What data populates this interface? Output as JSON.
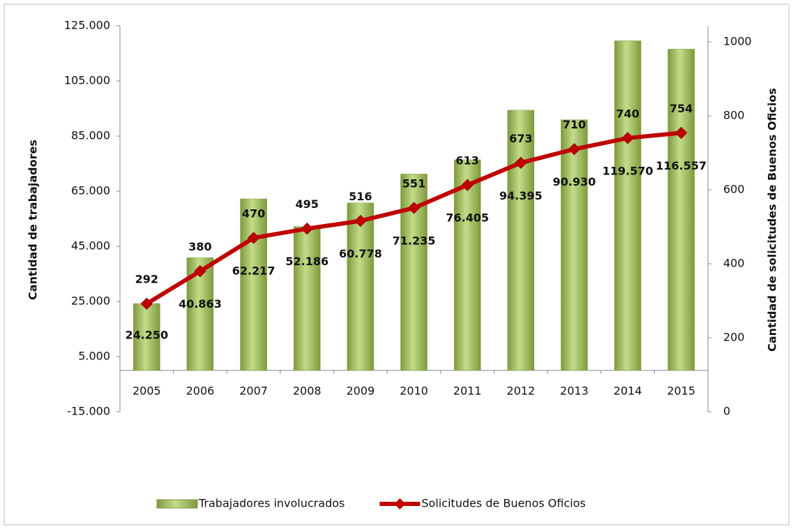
{
  "chart_data": {
    "type": "bar_line",
    "categories": [
      "2005",
      "2006",
      "2007",
      "2008",
      "2009",
      "2010",
      "2011",
      "2012",
      "2013",
      "2014",
      "2015"
    ],
    "ylabel": "Cantidad de trabajadores",
    "y2label": "Cantidad de solicitudes de Buenos Oficios",
    "ylim": [
      -15000,
      125000
    ],
    "yticks": [
      {
        "value": -15000,
        "label": "-15.000"
      },
      {
        "value": 5000,
        "label": "5.000"
      },
      {
        "value": 25000,
        "label": "25.000"
      },
      {
        "value": 45000,
        "label": "45.000"
      },
      {
        "value": 65000,
        "label": "65.000"
      },
      {
        "value": 85000,
        "label": "85.000"
      },
      {
        "value": 105000,
        "label": "105.000"
      },
      {
        "value": 125000,
        "label": "125.000"
      }
    ],
    "y2lim": [
      0,
      1000
    ],
    "y2ticks": [
      0,
      200,
      400,
      600,
      800,
      1000
    ],
    "legend": "bottom",
    "series": [
      {
        "name": "Trabajadores involucrados",
        "type": "bar",
        "color": "#9bbb59",
        "values": [
          24250,
          40863,
          62217,
          52186,
          60778,
          71235,
          76405,
          94395,
          90930,
          119570,
          116557
        ],
        "value_labels": [
          "24.250",
          "40.863",
          "62.217",
          "52.186",
          "60.778",
          "71.235",
          "76.405",
          "94.395",
          "90.930",
          "119.570",
          "116.557"
        ]
      },
      {
        "name": "Solicitudes de Buenos Oficios",
        "type": "line",
        "axis": "y2",
        "color": "#c00000",
        "values": [
          292,
          380,
          470,
          495,
          516,
          551,
          613,
          673,
          710,
          740,
          754
        ]
      }
    ]
  }
}
